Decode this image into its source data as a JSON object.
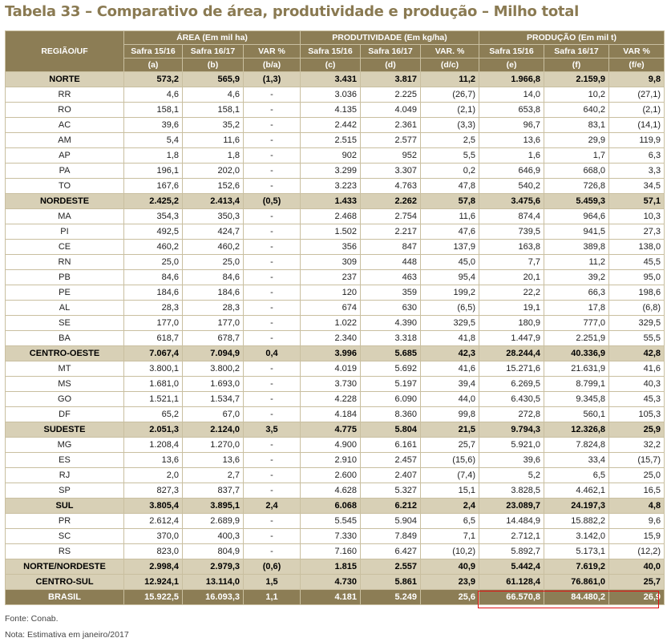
{
  "title": "Tabela 33 – Comparativo de área, produtividade e produção – Milho total",
  "header": {
    "region": "REGIÃO/UF",
    "groups": [
      "ÁREA (Em mil ha)",
      "PRODUTIVIDADE (Em kg/ha)",
      "PRODUÇÃO (Em mil t)"
    ],
    "subs": [
      "Safra 15/16",
      "Safra 16/17",
      "VAR %",
      "Safra 15/16",
      "Safra 16/17",
      "VAR. %",
      "Safra 15/16",
      "Safra 16/17",
      "VAR %"
    ],
    "letters": [
      "(a)",
      "(b)",
      "(b/a)",
      "(c)",
      "(d)",
      "(d/c)",
      "(e)",
      "(f)",
      "(f/e)"
    ]
  },
  "rows": [
    {
      "type": "agg",
      "name": "NORTE",
      "v": [
        "573,2",
        "565,9",
        "(1,3)",
        "3.431",
        "3.817",
        "11,2",
        "1.966,8",
        "2.159,9",
        "9,8"
      ]
    },
    {
      "type": "uf",
      "name": "RR",
      "v": [
        "4,6",
        "4,6",
        "-",
        "3.036",
        "2.225",
        "(26,7)",
        "14,0",
        "10,2",
        "(27,1)"
      ]
    },
    {
      "type": "uf",
      "name": "RO",
      "v": [
        "158,1",
        "158,1",
        "-",
        "4.135",
        "4.049",
        "(2,1)",
        "653,8",
        "640,2",
        "(2,1)"
      ]
    },
    {
      "type": "uf",
      "name": "AC",
      "v": [
        "39,6",
        "35,2",
        "-",
        "2.442",
        "2.361",
        "(3,3)",
        "96,7",
        "83,1",
        "(14,1)"
      ]
    },
    {
      "type": "uf",
      "name": "AM",
      "v": [
        "5,4",
        "11,6",
        "-",
        "2.515",
        "2.577",
        "2,5",
        "13,6",
        "29,9",
        "119,9"
      ]
    },
    {
      "type": "uf",
      "name": "AP",
      "v": [
        "1,8",
        "1,8",
        "-",
        "902",
        "952",
        "5,5",
        "1,6",
        "1,7",
        "6,3"
      ]
    },
    {
      "type": "uf",
      "name": "PA",
      "v": [
        "196,1",
        "202,0",
        "-",
        "3.299",
        "3.307",
        "0,2",
        "646,9",
        "668,0",
        "3,3"
      ]
    },
    {
      "type": "uf",
      "name": "TO",
      "v": [
        "167,6",
        "152,6",
        "-",
        "3.223",
        "4.763",
        "47,8",
        "540,2",
        "726,8",
        "34,5"
      ]
    },
    {
      "type": "agg",
      "name": "NORDESTE",
      "v": [
        "2.425,2",
        "2.413,4",
        "(0,5)",
        "1.433",
        "2.262",
        "57,8",
        "3.475,6",
        "5.459,3",
        "57,1"
      ]
    },
    {
      "type": "uf",
      "name": "MA",
      "v": [
        "354,3",
        "350,3",
        "-",
        "2.468",
        "2.754",
        "11,6",
        "874,4",
        "964,6",
        "10,3"
      ]
    },
    {
      "type": "uf",
      "name": "PI",
      "v": [
        "492,5",
        "424,7",
        "-",
        "1.502",
        "2.217",
        "47,6",
        "739,5",
        "941,5",
        "27,3"
      ]
    },
    {
      "type": "uf",
      "name": "CE",
      "v": [
        "460,2",
        "460,2",
        "-",
        "356",
        "847",
        "137,9",
        "163,8",
        "389,8",
        "138,0"
      ]
    },
    {
      "type": "uf",
      "name": "RN",
      "v": [
        "25,0",
        "25,0",
        "-",
        "309",
        "448",
        "45,0",
        "7,7",
        "11,2",
        "45,5"
      ]
    },
    {
      "type": "uf",
      "name": "PB",
      "v": [
        "84,6",
        "84,6",
        "-",
        "237",
        "463",
        "95,4",
        "20,1",
        "39,2",
        "95,0"
      ]
    },
    {
      "type": "uf",
      "name": "PE",
      "v": [
        "184,6",
        "184,6",
        "-",
        "120",
        "359",
        "199,2",
        "22,2",
        "66,3",
        "198,6"
      ]
    },
    {
      "type": "uf",
      "name": "AL",
      "v": [
        "28,3",
        "28,3",
        "-",
        "674",
        "630",
        "(6,5)",
        "19,1",
        "17,8",
        "(6,8)"
      ]
    },
    {
      "type": "uf",
      "name": "SE",
      "v": [
        "177,0",
        "177,0",
        "-",
        "1.022",
        "4.390",
        "329,5",
        "180,9",
        "777,0",
        "329,5"
      ]
    },
    {
      "type": "uf",
      "name": "BA",
      "v": [
        "618,7",
        "678,7",
        "-",
        "2.340",
        "3.318",
        "41,8",
        "1.447,9",
        "2.251,9",
        "55,5"
      ]
    },
    {
      "type": "agg",
      "name": "CENTRO-OESTE",
      "v": [
        "7.067,4",
        "7.094,9",
        "0,4",
        "3.996",
        "5.685",
        "42,3",
        "28.244,4",
        "40.336,9",
        "42,8"
      ]
    },
    {
      "type": "uf",
      "name": "MT",
      "v": [
        "3.800,1",
        "3.800,2",
        "-",
        "4.019",
        "5.692",
        "41,6",
        "15.271,6",
        "21.631,9",
        "41,6"
      ]
    },
    {
      "type": "uf",
      "name": "MS",
      "v": [
        "1.681,0",
        "1.693,0",
        "-",
        "3.730",
        "5.197",
        "39,4",
        "6.269,5",
        "8.799,1",
        "40,3"
      ]
    },
    {
      "type": "uf",
      "name": "GO",
      "v": [
        "1.521,1",
        "1.534,7",
        "-",
        "4.228",
        "6.090",
        "44,0",
        "6.430,5",
        "9.345,8",
        "45,3"
      ]
    },
    {
      "type": "uf",
      "name": "DF",
      "v": [
        "65,2",
        "67,0",
        "-",
        "4.184",
        "8.360",
        "99,8",
        "272,8",
        "560,1",
        "105,3"
      ]
    },
    {
      "type": "agg",
      "name": "SUDESTE",
      "v": [
        "2.051,3",
        "2.124,0",
        "3,5",
        "4.775",
        "5.804",
        "21,5",
        "9.794,3",
        "12.326,8",
        "25,9"
      ]
    },
    {
      "type": "uf",
      "name": "MG",
      "v": [
        "1.208,4",
        "1.270,0",
        "-",
        "4.900",
        "6.161",
        "25,7",
        "5.921,0",
        "7.824,8",
        "32,2"
      ]
    },
    {
      "type": "uf",
      "name": "ES",
      "v": [
        "13,6",
        "13,6",
        "-",
        "2.910",
        "2.457",
        "(15,6)",
        "39,6",
        "33,4",
        "(15,7)"
      ]
    },
    {
      "type": "uf",
      "name": "RJ",
      "v": [
        "2,0",
        "2,7",
        "-",
        "2.600",
        "2.407",
        "(7,4)",
        "5,2",
        "6,5",
        "25,0"
      ]
    },
    {
      "type": "uf",
      "name": "SP",
      "v": [
        "827,3",
        "837,7",
        "-",
        "4.628",
        "5.327",
        "15,1",
        "3.828,5",
        "4.462,1",
        "16,5"
      ]
    },
    {
      "type": "agg",
      "name": "SUL",
      "v": [
        "3.805,4",
        "3.895,1",
        "2,4",
        "6.068",
        "6.212",
        "2,4",
        "23.089,7",
        "24.197,3",
        "4,8"
      ]
    },
    {
      "type": "uf",
      "name": "PR",
      "v": [
        "2.612,4",
        "2.689,9",
        "-",
        "5.545",
        "5.904",
        "6,5",
        "14.484,9",
        "15.882,2",
        "9,6"
      ]
    },
    {
      "type": "uf",
      "name": "SC",
      "v": [
        "370,0",
        "400,3",
        "-",
        "7.330",
        "7.849",
        "7,1",
        "2.712,1",
        "3.142,0",
        "15,9"
      ]
    },
    {
      "type": "uf",
      "name": "RS",
      "v": [
        "823,0",
        "804,9",
        "-",
        "7.160",
        "6.427",
        "(10,2)",
        "5.892,7",
        "5.173,1",
        "(12,2)"
      ]
    },
    {
      "type": "agg",
      "name": "NORTE/NORDESTE",
      "v": [
        "2.998,4",
        "2.979,3",
        "(0,6)",
        "1.815",
        "2.557",
        "40,9",
        "5.442,4",
        "7.619,2",
        "40,0"
      ]
    },
    {
      "type": "agg",
      "name": "CENTRO-SUL",
      "v": [
        "12.924,1",
        "13.114,0",
        "1,5",
        "4.730",
        "5.861",
        "23,9",
        "61.128,4",
        "76.861,0",
        "25,7"
      ]
    },
    {
      "type": "brasil",
      "name": "BRASIL",
      "v": [
        "15.922,5",
        "16.093,3",
        "1,1",
        "4.181",
        "5.249",
        "25,6",
        "66.570,8",
        "84.480,2",
        "26,9"
      ]
    }
  ],
  "footer": {
    "source": "Fonte: Conab.",
    "note": "Nota: Estimativa em janeiro/2017"
  },
  "colors": {
    "header": "#8c7d55",
    "aggregate_row": "#d8d0b6",
    "highlight_box": "#e01010"
  }
}
